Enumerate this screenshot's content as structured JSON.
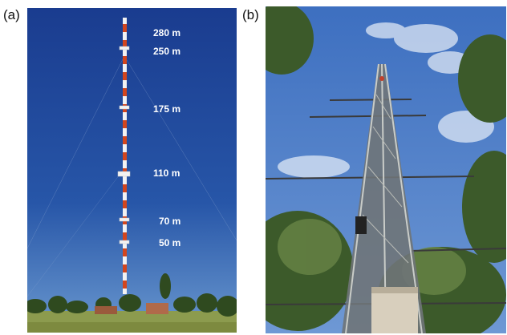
{
  "panels": {
    "a": {
      "label": "(a)"
    },
    "b": {
      "label": "(b)"
    }
  },
  "mast_heights": [
    "280 m",
    "250 m",
    "175 m",
    "110 m",
    "70 m",
    "50 m"
  ],
  "colors": {
    "sky_a_top": "#1b3f93",
    "sky_a_bottom": "#5f8bc7",
    "mast_red": "#d2461e",
    "mast_white": "#f2f2f2",
    "sky_b": "#4f7fc8",
    "foliage": "#3f5f2c"
  }
}
